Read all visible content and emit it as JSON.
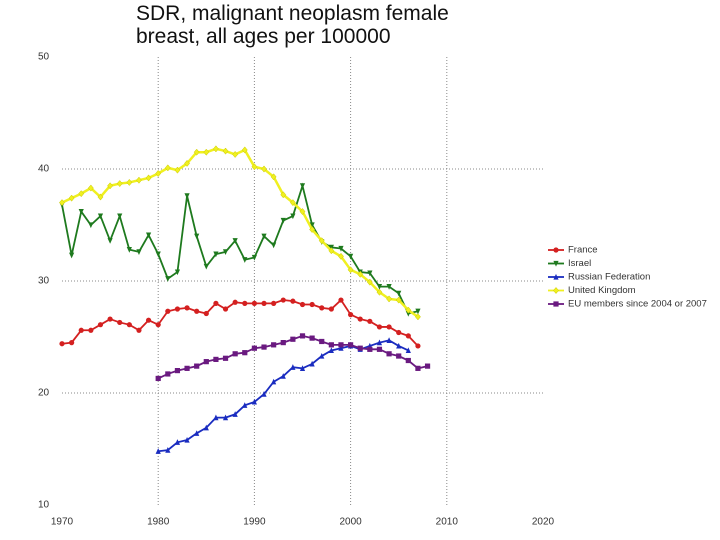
{
  "chart_data": {
    "type": "line",
    "title": "SDR, malignant neoplasm female\nbreast, all ages per 100000",
    "xlim": [
      1970,
      2020
    ],
    "xticks": [
      1970,
      1980,
      1990,
      2000,
      2010,
      2020
    ],
    "ylim": [
      10,
      50
    ],
    "yticks": [
      10,
      20,
      30,
      40,
      50
    ],
    "grid": true,
    "legend": "right",
    "series": [
      {
        "name": "France",
        "color": "#d42020",
        "marker": "circle",
        "x": [
          1970,
          1971,
          1972,
          1973,
          1974,
          1975,
          1976,
          1977,
          1978,
          1979,
          1980,
          1981,
          1982,
          1983,
          1984,
          1985,
          1986,
          1987,
          1988,
          1989,
          1990,
          1991,
          1992,
          1993,
          1994,
          1995,
          1996,
          1997,
          1998,
          1999,
          2000,
          2001,
          2002,
          2003,
          2004,
          2005,
          2006,
          2007
        ],
        "values": [
          24.4,
          24.5,
          25.6,
          25.6,
          26.1,
          26.6,
          26.3,
          26.1,
          25.6,
          26.5,
          26.1,
          27.3,
          27.5,
          27.6,
          27.3,
          27.1,
          28.0,
          27.5,
          28.1,
          28.0,
          28.0,
          28.0,
          28.0,
          28.3,
          28.2,
          27.9,
          27.9,
          27.6,
          27.5,
          28.3,
          27.0,
          26.6,
          26.4,
          25.9,
          25.9,
          25.4,
          25.1,
          24.2
        ]
      },
      {
        "name": "Israel",
        "color": "#1e7a1e",
        "marker": "tri-down",
        "x": [
          1970,
          1971,
          1972,
          1973,
          1974,
          1975,
          1976,
          1977,
          1978,
          1979,
          1980,
          1981,
          1982,
          1983,
          1984,
          1985,
          1986,
          1987,
          1988,
          1989,
          1990,
          1991,
          1992,
          1993,
          1994,
          1995,
          1996,
          1997,
          1998,
          1999,
          2000,
          2001,
          2002,
          2003,
          2004,
          2005,
          2006,
          2007
        ],
        "values": [
          36.8,
          32.3,
          36.2,
          35.0,
          35.8,
          33.6,
          35.8,
          32.8,
          32.6,
          34.1,
          32.4,
          30.2,
          30.8,
          37.6,
          34.0,
          31.3,
          32.4,
          32.6,
          33.6,
          31.9,
          32.1,
          34.0,
          33.2,
          35.4,
          35.8,
          38.5,
          35.0,
          33.5,
          33.0,
          32.9,
          32.2,
          30.8,
          30.7,
          29.5,
          29.5,
          28.9,
          27.1,
          27.3
        ]
      },
      {
        "name": "Russian Federation",
        "color": "#1a2cc0",
        "marker": "tri-up",
        "x": [
          1980,
          1981,
          1982,
          1983,
          1984,
          1985,
          1986,
          1987,
          1988,
          1989,
          1990,
          1991,
          1992,
          1993,
          1994,
          1995,
          1996,
          1997,
          1998,
          1999,
          2000,
          2001,
          2002,
          2003,
          2004,
          2005,
          2006
        ],
        "values": [
          14.8,
          14.9,
          15.6,
          15.8,
          16.4,
          16.9,
          17.8,
          17.8,
          18.1,
          18.9,
          19.2,
          19.9,
          21.0,
          21.5,
          22.3,
          22.2,
          22.6,
          23.3,
          23.8,
          24.0,
          24.2,
          23.9,
          24.2,
          24.5,
          24.7,
          24.2,
          23.8
        ]
      },
      {
        "name": "United Kingdom",
        "color": "#f0f020",
        "marker": "diamond",
        "x": [
          1970,
          1971,
          1972,
          1973,
          1974,
          1975,
          1976,
          1977,
          1978,
          1979,
          1980,
          1981,
          1982,
          1983,
          1984,
          1985,
          1986,
          1987,
          1988,
          1989,
          1990,
          1991,
          1992,
          1993,
          1994,
          1995,
          1996,
          1997,
          1998,
          1999,
          2000,
          2001,
          2002,
          2003,
          2004,
          2005,
          2006,
          2007
        ],
        "values": [
          37.0,
          37.4,
          37.8,
          38.3,
          37.5,
          38.5,
          38.7,
          38.8,
          39.0,
          39.2,
          39.6,
          40.1,
          39.9,
          40.5,
          41.5,
          41.5,
          41.8,
          41.6,
          41.3,
          41.7,
          40.2,
          40.0,
          39.3,
          37.7,
          37.0,
          36.2,
          34.6,
          33.6,
          32.7,
          32.2,
          31.0,
          30.6,
          29.9,
          29.0,
          28.4,
          28.3,
          27.4,
          26.8
        ]
      },
      {
        "name": "EU members since 2004 or 2007",
        "color": "#6a1a80",
        "marker": "square",
        "x": [
          1980,
          1981,
          1982,
          1983,
          1984,
          1985,
          1986,
          1987,
          1988,
          1989,
          1990,
          1991,
          1992,
          1993,
          1994,
          1995,
          1996,
          1997,
          1998,
          1999,
          2000,
          2001,
          2002,
          2003,
          2004,
          2005,
          2006,
          2007,
          2008
        ],
        "values": [
          21.3,
          21.7,
          22.0,
          22.2,
          22.4,
          22.8,
          23.0,
          23.1,
          23.5,
          23.6,
          24.0,
          24.1,
          24.3,
          24.5,
          24.8,
          25.1,
          24.9,
          24.6,
          24.3,
          24.3,
          24.3,
          24.0,
          23.9,
          23.9,
          23.5,
          23.3,
          22.9,
          22.2,
          22.4
        ]
      }
    ]
  }
}
